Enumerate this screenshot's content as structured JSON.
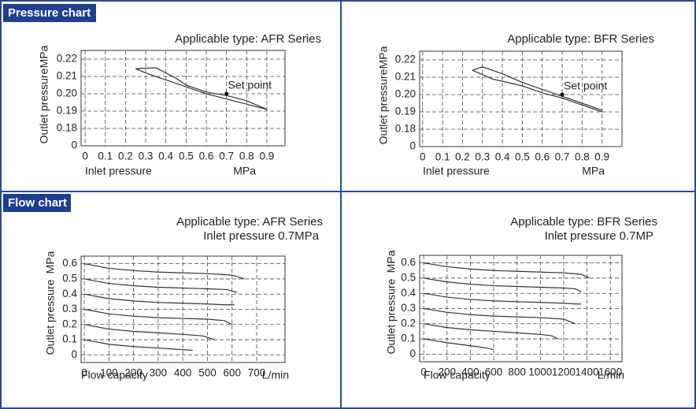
{
  "sections": [
    "Pressure chart",
    "Flow chart"
  ],
  "chart_data": [
    {
      "type": "line",
      "title": "Applicable type: AFR Series",
      "y_label": "Outlet pressure",
      "y_unit": "MPa",
      "x_label": "Inlet pressure",
      "x_unit": "MPa",
      "xlim": [
        -0.02,
        0.99
      ],
      "xticks": [
        0,
        0.1,
        0.2,
        0.3,
        0.4,
        0.5,
        0.6,
        0.7,
        0.8,
        0.9
      ],
      "ylim": [
        0,
        0.225
      ],
      "axis_break": [
        0,
        0.17
      ],
      "yticks": [
        0,
        0.18,
        0.19,
        {
          "value": 0.2,
          "label": "0.20"
        },
        0.21,
        0.22
      ],
      "grid": true,
      "series": [
        {
          "color": "#333333",
          "x": [
            0.25,
            0.35,
            0.45,
            0.5,
            0.6,
            0.7,
            0.8,
            0.9
          ],
          "values": [
            0.2145,
            0.215,
            0.209,
            0.205,
            0.201,
            0.199,
            0.196,
            0.191
          ]
        },
        {
          "color": "#333333",
          "x": [
            0.25,
            0.3,
            0.4,
            0.5,
            0.6,
            0.7,
            0.8,
            0.9
          ],
          "values": [
            0.2145,
            0.212,
            0.208,
            0.204,
            0.2,
            0.197,
            0.194,
            0.191
          ]
        }
      ],
      "annotations": [
        {
          "text": "Set point",
          "x": 0.7,
          "y": 0.2
        }
      ]
    },
    {
      "type": "line",
      "title": "Applicable type: BFR Series",
      "y_label": "Outlet pressure",
      "y_unit": "MPa",
      "x_label": "Inlet pressure",
      "x_unit": "MPa",
      "xlim": [
        -0.015,
        1.0
      ],
      "xticks": [
        0,
        0.1,
        0.2,
        0.3,
        0.4,
        0.5,
        0.6,
        0.7,
        0.8,
        0.9
      ],
      "ylim": [
        0,
        0.225
      ],
      "axis_break": [
        0,
        0.17
      ],
      "yticks": [
        0,
        0.18,
        0.19,
        {
          "value": 0.2,
          "label": "0.20"
        },
        0.21,
        0.22
      ],
      "grid": true,
      "series": [
        {
          "color": "#333333",
          "x": [
            0.25,
            0.3,
            0.4,
            0.5,
            0.6,
            0.7,
            0.8,
            0.9
          ],
          "values": [
            0.214,
            0.216,
            0.212,
            0.207,
            0.203,
            0.199,
            0.195,
            0.191
          ]
        },
        {
          "color": "#333333",
          "x": [
            0.25,
            0.35,
            0.5,
            0.6,
            0.7,
            0.8,
            0.9
          ],
          "values": [
            0.214,
            0.209,
            0.205,
            0.201,
            0.198,
            0.194,
            0.19
          ]
        }
      ],
      "annotations": [
        {
          "text": "Set point",
          "x": 0.7,
          "y": 0.2
        }
      ]
    },
    {
      "type": "line",
      "title": "Applicable type: AFR Series",
      "subtitle": "Inlet pressure 0.7MPa",
      "y_label": "Outlet pressure",
      "y_unit": "MPa",
      "x_label": "Flow capacity",
      "x_unit": "L/min",
      "xlim": [
        -13,
        815
      ],
      "xticks": [
        0,
        100,
        200,
        300,
        400,
        500,
        600,
        700
      ],
      "ylim": [
        -0.05,
        0.65
      ],
      "yticks": [
        0,
        0.1,
        0.2,
        0.3,
        0.4,
        0.5,
        0.6
      ],
      "grid": true,
      "series": [
        {
          "color": "#333333",
          "x": [
            0,
            100,
            200,
            300,
            400,
            500,
            600,
            650
          ],
          "values": [
            0.6,
            0.57,
            0.555,
            0.545,
            0.54,
            0.535,
            0.525,
            0.5
          ]
        },
        {
          "color": "#333333",
          "x": [
            0,
            100,
            200,
            300,
            400,
            500,
            580,
            620
          ],
          "values": [
            0.5,
            0.47,
            0.455,
            0.445,
            0.44,
            0.435,
            0.43,
            0.41
          ]
        },
        {
          "color": "#333333",
          "x": [
            0,
            100,
            200,
            300,
            400,
            500,
            570,
            610
          ],
          "values": [
            0.4,
            0.37,
            0.355,
            0.345,
            0.34,
            0.335,
            0.33,
            0.33
          ]
        },
        {
          "color": "#333333",
          "x": [
            0,
            100,
            200,
            300,
            400,
            500,
            570,
            600
          ],
          "values": [
            0.3,
            0.27,
            0.255,
            0.245,
            0.24,
            0.235,
            0.225,
            0.2
          ]
        },
        {
          "color": "#333333",
          "x": [
            0,
            100,
            200,
            300,
            400,
            480,
            530
          ],
          "values": [
            0.2,
            0.17,
            0.155,
            0.145,
            0.135,
            0.125,
            0.1
          ]
        },
        {
          "color": "#333333",
          "x": [
            0,
            100,
            200,
            300,
            400,
            440
          ],
          "values": [
            0.1,
            0.07,
            0.055,
            0.045,
            0.035,
            0.03
          ]
        }
      ]
    },
    {
      "type": "line",
      "title": "Applicable type: BFR Series",
      "subtitle": "Inlet pressure 0.7MP",
      "y_label": "Outlet pressure",
      "y_unit": "MPa",
      "x_label": "Flow capacity",
      "x_unit": "L/min",
      "xlim": [
        -35,
        1700
      ],
      "xticks": [
        0,
        200,
        400,
        600,
        800,
        1000,
        1200,
        1400,
        1600
      ],
      "ylim": [
        -0.05,
        0.65
      ],
      "yticks": [
        0,
        0.1,
        0.2,
        0.3,
        0.4,
        0.5,
        0.6
      ],
      "grid": true,
      "series": [
        {
          "color": "#333333",
          "x": [
            0,
            200,
            400,
            600,
            800,
            1000,
            1200,
            1350,
            1420
          ],
          "values": [
            0.6,
            0.575,
            0.56,
            0.55,
            0.545,
            0.54,
            0.535,
            0.525,
            0.5
          ]
        },
        {
          "color": "#333333",
          "x": [
            0,
            200,
            400,
            600,
            800,
            1000,
            1200,
            1300,
            1350
          ],
          "values": [
            0.5,
            0.475,
            0.46,
            0.45,
            0.445,
            0.44,
            0.435,
            0.43,
            0.41
          ]
        },
        {
          "color": "#333333",
          "x": [
            0,
            200,
            400,
            600,
            800,
            1000,
            1200,
            1300,
            1350
          ],
          "values": [
            0.4,
            0.375,
            0.36,
            0.35,
            0.345,
            0.34,
            0.335,
            0.33,
            0.33
          ]
        },
        {
          "color": "#333333",
          "x": [
            0,
            200,
            400,
            600,
            800,
            1000,
            1200,
            1300
          ],
          "values": [
            0.3,
            0.275,
            0.26,
            0.25,
            0.245,
            0.24,
            0.23,
            0.2
          ]
        },
        {
          "color": "#333333",
          "x": [
            0,
            200,
            400,
            600,
            800,
            1000,
            1100,
            1150
          ],
          "values": [
            0.2,
            0.175,
            0.16,
            0.15,
            0.14,
            0.13,
            0.12,
            0.1
          ]
        },
        {
          "color": "#333333",
          "x": [
            0,
            200,
            400,
            500,
            600
          ],
          "values": [
            0.1,
            0.075,
            0.055,
            0.045,
            0.03
          ]
        }
      ]
    }
  ]
}
